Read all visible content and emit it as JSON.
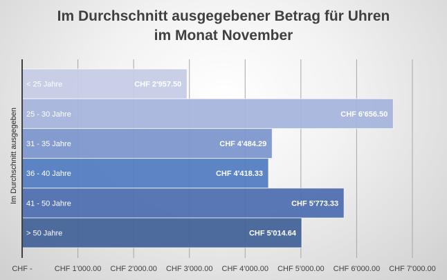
{
  "chart_data": {
    "type": "bar",
    "orientation": "horizontal",
    "title_lines": [
      "Im Durchschnitt ausgegebener Betrag für Uhren",
      "im Monat November"
    ],
    "ylabel": "Im Durchschnitt ausgegeben",
    "xlabel": "",
    "categories": [
      "< 25 Jahre",
      "25 - 30 Jahre",
      "31 - 35 Jahre",
      "36 - 40 Jahre",
      "41 - 50 Jahre",
      "> 50 Jahre"
    ],
    "values": [
      2957.5,
      6656.5,
      4484.29,
      4418.33,
      5773.33,
      5014.64
    ],
    "data_labels": [
      "CHF 2'957.50",
      "CHF 6'656.50",
      "CHF 4'484.29",
      "CHF 4'418.33",
      "CHF 5'773.33",
      "CHF 5'014.64"
    ],
    "bar_colors": [
      "#c5cce6",
      "#a7b5dc",
      "#7e97ce",
      "#547ec2",
      "#5070b0",
      "#466499"
    ],
    "xlim": [
      0,
      7000
    ],
    "xticks": [
      0,
      1000,
      2000,
      3000,
      4000,
      5000,
      6000,
      7000
    ],
    "xtick_labels": [
      "CHF -",
      "CHF 1'000.00",
      "CHF 2'000.00",
      "CHF 3'000.00",
      "CHF 4'000.00",
      "CHF 5'000.00",
      "CHF 6'000.00",
      "CHF 7'000.00"
    ],
    "grid": "vertical",
    "legend": "none"
  }
}
